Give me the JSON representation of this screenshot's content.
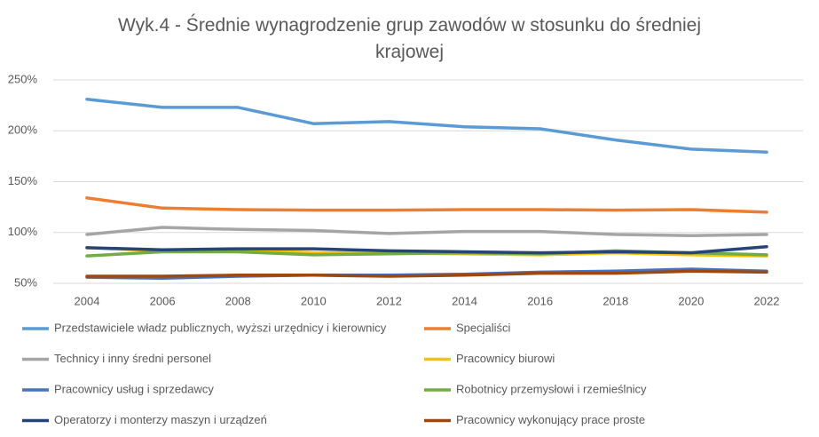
{
  "chart_data": {
    "type": "line",
    "title": "Wyk.4 - Średnie wynagrodzenie grup zawodów w stosunku do średniej krajowej",
    "categories": [
      "2004",
      "2006",
      "2008",
      "2010",
      "2012",
      "2014",
      "2016",
      "2018",
      "2020",
      "2022"
    ],
    "ylim": [
      50,
      250
    ],
    "yticks": [
      {
        "value": 50,
        "label": "50%"
      },
      {
        "value": 100,
        "label": "100%"
      },
      {
        "value": 150,
        "label": "150%"
      },
      {
        "value": 200,
        "label": "200%"
      },
      {
        "value": 250,
        "label": "250%"
      }
    ],
    "grid": true,
    "series": [
      {
        "name": "Przedstawiciele władz publicznych, wyższi urzędnicy i kierownicy",
        "color": "#5b9bd5",
        "values": [
          231,
          223,
          223,
          207,
          209,
          204,
          202,
          191,
          182,
          179
        ]
      },
      {
        "name": "Specjaliści",
        "color": "#ed7d31",
        "values": [
          134,
          124,
          122.5,
          122,
          122,
          122.5,
          122.5,
          122,
          122.5,
          120
        ]
      },
      {
        "name": "Technicy i inny średni personel",
        "color": "#a5a5a5",
        "values": [
          98,
          105,
          103,
          102,
          99,
          101,
          101,
          98,
          97,
          98
        ]
      },
      {
        "name": "Pracownicy biurowi",
        "color": "#ffc000",
        "values": [
          85,
          82,
          83,
          80,
          80,
          79,
          78,
          80,
          78,
          77
        ]
      },
      {
        "name": "Pracownicy usług i sprzedawcy",
        "color": "#4472c4",
        "values": [
          56,
          55,
          57,
          58,
          58,
          59,
          61,
          62,
          64,
          62
        ]
      },
      {
        "name": "Robotnicy przemysłowi i rzemieślnicy",
        "color": "#70ad47",
        "values": [
          77,
          81,
          81,
          78,
          79,
          80,
          79,
          82,
          80,
          78
        ]
      },
      {
        "name": "Operatorzy i monterzy maszyn i urządzeń",
        "color": "#264478",
        "values": [
          85,
          83,
          84,
          84,
          82,
          81,
          80,
          81,
          80,
          86
        ]
      },
      {
        "name": "Pracownicy wykonujący prace proste",
        "color": "#9e480e",
        "values": [
          57,
          57,
          58,
          58,
          57,
          58,
          60,
          60,
          62,
          61
        ]
      }
    ]
  }
}
